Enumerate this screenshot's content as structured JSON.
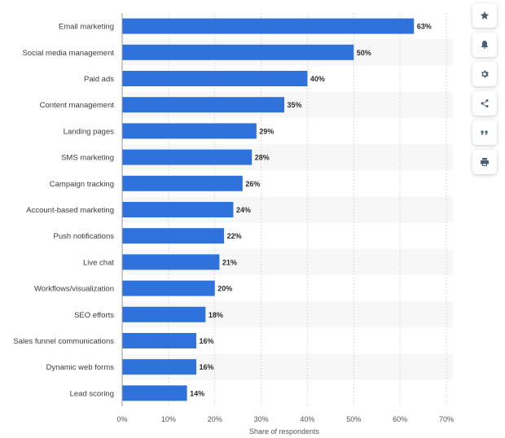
{
  "chart_data": {
    "type": "bar",
    "orientation": "horizontal",
    "categories": [
      "Email marketing",
      "Social media management",
      "Paid ads",
      "Content management",
      "Landing pages",
      "SMS marketing",
      "Campaign tracking",
      "Account-based marketing",
      "Push notifications",
      "Live chat",
      "Workflows/visualization",
      "SEO efforts",
      "Sales funnel communications",
      "Dynamic web forms",
      "Lead scoring"
    ],
    "values": [
      63,
      50,
      40,
      35,
      29,
      28,
      26,
      24,
      22,
      21,
      20,
      18,
      16,
      16,
      14
    ],
    "value_labels": [
      "63%",
      "50%",
      "40%",
      "35%",
      "29%",
      "28%",
      "26%",
      "24%",
      "22%",
      "21%",
      "20%",
      "18%",
      "16%",
      "16%",
      "14%"
    ],
    "xlim": [
      0,
      70
    ],
    "x_ticks": [
      0,
      10,
      20,
      30,
      40,
      50,
      60,
      70
    ],
    "x_tick_labels": [
      "0%",
      "10%",
      "20%",
      "30%",
      "40%",
      "50%",
      "60%",
      "70%"
    ],
    "xlabel": "Share of respondents",
    "ylabel": "",
    "title": "",
    "grid": true,
    "bar_color": "#2f72dc",
    "band_color": "#f7f7f7"
  },
  "toolbar": {
    "buttons": [
      {
        "name": "favorite-button",
        "icon": "star-icon"
      },
      {
        "name": "notification-button",
        "icon": "bell-icon"
      },
      {
        "name": "settings-button",
        "icon": "gear-icon"
      },
      {
        "name": "share-button",
        "icon": "share-icon"
      },
      {
        "name": "cite-button",
        "icon": "quote-icon"
      },
      {
        "name": "print-button",
        "icon": "print-icon"
      }
    ]
  }
}
